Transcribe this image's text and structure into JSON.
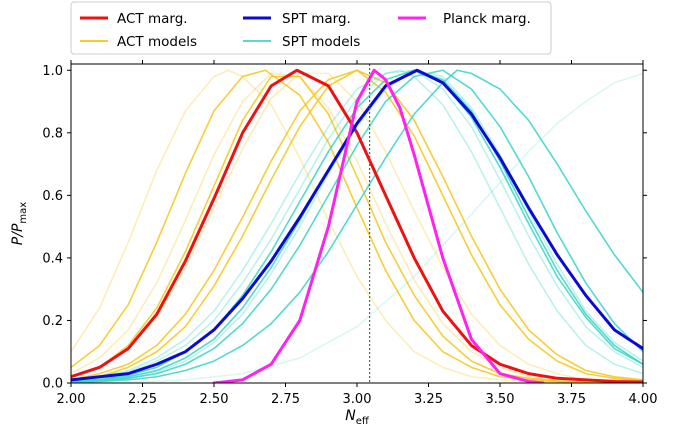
{
  "chart_data": {
    "type": "line",
    "xlabel_main": "N",
    "xlabel_sub": "eff",
    "ylabel_main": "P/P",
    "ylabel_sub": "max",
    "xlim": [
      2.0,
      4.0
    ],
    "ylim": [
      0.0,
      1.02
    ],
    "x_ticks": [
      2.0,
      2.25,
      2.5,
      2.75,
      3.0,
      3.25,
      3.5,
      3.75,
      4.0
    ],
    "x_tick_labels": [
      "2.00",
      "2.25",
      "2.50",
      "2.75",
      "3.00",
      "3.25",
      "3.50",
      "3.75",
      "4.00"
    ],
    "y_ticks": [
      0.0,
      0.2,
      0.4,
      0.6,
      0.8,
      1.0
    ],
    "y_tick_labels": [
      "0.0",
      "0.2",
      "0.4",
      "0.6",
      "0.8",
      "1.0"
    ],
    "grid": false,
    "legend_position": "top-center",
    "reference_line": {
      "x": 3.044,
      "color": "#2e7d32",
      "style": "dotted"
    },
    "colors": {
      "act": "#ee1111",
      "act_models": "#f5c518",
      "spt": "#0a0ad0",
      "spt_models": "#40d6c8",
      "planck": "#ff22ee"
    },
    "legend": [
      {
        "label": "ACT marg.",
        "color": "#ee1111",
        "weight": "bold"
      },
      {
        "label": "ACT models",
        "color": "#f5c518",
        "weight": "normal"
      },
      {
        "label": "SPT marg.",
        "color": "#0a0ad0",
        "weight": "bold"
      },
      {
        "label": "SPT models",
        "color": "#40d6c8",
        "weight": "normal"
      },
      {
        "label": "Planck marg.",
        "color": "#ff22ee",
        "weight": "bold"
      }
    ],
    "series": [
      {
        "name": "ACT marg.",
        "kind": "bold",
        "color": "#ee1111",
        "x": [
          2.0,
          2.1,
          2.2,
          2.3,
          2.4,
          2.5,
          2.6,
          2.7,
          2.79,
          2.9,
          3.0,
          3.1,
          3.2,
          3.3,
          3.4,
          3.5,
          3.6,
          3.7,
          3.8,
          3.9,
          4.0
        ],
        "y": [
          0.02,
          0.05,
          0.11,
          0.22,
          0.39,
          0.59,
          0.8,
          0.95,
          1.0,
          0.95,
          0.8,
          0.6,
          0.4,
          0.23,
          0.12,
          0.06,
          0.03,
          0.015,
          0.01,
          0.005,
          0.003
        ]
      },
      {
        "name": "SPT marg.",
        "kind": "bold",
        "color": "#0a0ad0",
        "x": [
          2.0,
          2.1,
          2.2,
          2.3,
          2.4,
          2.5,
          2.6,
          2.7,
          2.8,
          2.9,
          3.0,
          3.1,
          3.21,
          3.3,
          3.4,
          3.5,
          3.6,
          3.7,
          3.8,
          3.9,
          4.0
        ],
        "y": [
          0.01,
          0.02,
          0.03,
          0.06,
          0.1,
          0.17,
          0.27,
          0.39,
          0.53,
          0.68,
          0.83,
          0.95,
          1.0,
          0.96,
          0.86,
          0.72,
          0.56,
          0.41,
          0.28,
          0.17,
          0.11
        ]
      },
      {
        "name": "Planck marg.",
        "kind": "bold",
        "color": "#ff22ee",
        "x": [
          2.5,
          2.6,
          2.7,
          2.8,
          2.9,
          2.95,
          3.0,
          3.06,
          3.1,
          3.15,
          3.2,
          3.3,
          3.4,
          3.5,
          3.6,
          3.65
        ],
        "y": [
          0.0,
          0.01,
          0.06,
          0.2,
          0.5,
          0.7,
          0.9,
          1.0,
          0.97,
          0.88,
          0.73,
          0.4,
          0.14,
          0.03,
          0.005,
          0.0
        ]
      },
      {
        "name": "",
        "kind": "model",
        "color": "#f5c518",
        "opacity": 0.85,
        "x": [
          2.0,
          2.1,
          2.2,
          2.3,
          2.4,
          2.5,
          2.6,
          2.68,
          2.8,
          2.9,
          3.0,
          3.1,
          3.2,
          3.3,
          3.4,
          3.5,
          3.6,
          3.7,
          3.8,
          3.9,
          4.0
        ],
        "y": [
          0.05,
          0.12,
          0.25,
          0.45,
          0.67,
          0.87,
          0.98,
          1.0,
          0.92,
          0.77,
          0.56,
          0.36,
          0.2,
          0.1,
          0.05,
          0.02,
          0.01,
          0.005,
          0.002,
          0.001,
          0.0
        ]
      },
      {
        "name": "",
        "kind": "model",
        "color": "#f5c518",
        "opacity": 0.85,
        "x": [
          2.0,
          2.1,
          2.2,
          2.3,
          2.4,
          2.5,
          2.6,
          2.7,
          2.8,
          2.9,
          3.0,
          3.1,
          3.2,
          3.3,
          3.4,
          3.5,
          3.6,
          3.7,
          3.8,
          3.9,
          4.0
        ],
        "y": [
          0.02,
          0.05,
          0.12,
          0.24,
          0.42,
          0.63,
          0.84,
          0.98,
          0.98,
          0.86,
          0.66,
          0.45,
          0.28,
          0.15,
          0.07,
          0.03,
          0.015,
          0.006,
          0.002,
          0.001,
          0.0
        ]
      },
      {
        "name": "",
        "kind": "model",
        "color": "#f5c518",
        "opacity": 0.85,
        "x": [
          2.0,
          2.1,
          2.2,
          2.3,
          2.4,
          2.5,
          2.6,
          2.7,
          2.8,
          2.9,
          3.0,
          3.1,
          3.2,
          3.3,
          3.4,
          3.5,
          3.6,
          3.7,
          3.8,
          3.9,
          4.0
        ],
        "y": [
          0.01,
          0.03,
          0.06,
          0.12,
          0.22,
          0.36,
          0.53,
          0.71,
          0.87,
          0.97,
          1.0,
          0.93,
          0.79,
          0.6,
          0.41,
          0.25,
          0.14,
          0.07,
          0.03,
          0.015,
          0.007
        ]
      },
      {
        "name": "",
        "kind": "model",
        "color": "#f5c518",
        "opacity": 0.85,
        "x": [
          2.0,
          2.1,
          2.2,
          2.3,
          2.4,
          2.5,
          2.6,
          2.7,
          2.8,
          2.9,
          3.0,
          3.1,
          3.2,
          3.3,
          3.4,
          3.5,
          3.6,
          3.7,
          3.8,
          3.9,
          4.0
        ],
        "y": [
          0.01,
          0.02,
          0.05,
          0.1,
          0.18,
          0.31,
          0.47,
          0.65,
          0.82,
          0.95,
          1.0,
          0.96,
          0.84,
          0.66,
          0.47,
          0.3,
          0.17,
          0.09,
          0.04,
          0.02,
          0.01
        ]
      },
      {
        "name": "",
        "kind": "model",
        "color": "#f5c518",
        "opacity": 0.3,
        "x": [
          2.0,
          2.1,
          2.2,
          2.3,
          2.4,
          2.5,
          2.55,
          2.6,
          2.7,
          2.8,
          2.9,
          3.0,
          3.1,
          3.2,
          3.3,
          3.4,
          3.5,
          3.6,
          3.7,
          3.8,
          4.0
        ],
        "y": [
          0.1,
          0.24,
          0.45,
          0.68,
          0.87,
          0.98,
          1.0,
          0.98,
          0.89,
          0.72,
          0.52,
          0.34,
          0.2,
          0.1,
          0.05,
          0.02,
          0.01,
          0.004,
          0.002,
          0.001,
          0.0
        ]
      },
      {
        "name": "",
        "kind": "model",
        "color": "#f5c518",
        "opacity": 0.3,
        "x": [
          2.0,
          2.1,
          2.2,
          2.3,
          2.4,
          2.5,
          2.6,
          2.7,
          2.8,
          2.9,
          3.0,
          3.1,
          3.2,
          3.3,
          3.4,
          3.5,
          3.6,
          3.7,
          3.8,
          3.9,
          4.0
        ],
        "y": [
          0.03,
          0.08,
          0.17,
          0.32,
          0.52,
          0.73,
          0.9,
          0.99,
          0.98,
          0.88,
          0.71,
          0.51,
          0.33,
          0.19,
          0.1,
          0.05,
          0.02,
          0.01,
          0.004,
          0.002,
          0.001
        ]
      },
      {
        "name": "",
        "kind": "model",
        "color": "#f5c518",
        "opacity": 0.3,
        "x": [
          2.0,
          2.1,
          2.2,
          2.3,
          2.4,
          2.5,
          2.6,
          2.7,
          2.8,
          2.9,
          3.0,
          3.1,
          3.2,
          3.3,
          3.4,
          3.5,
          3.6,
          3.7,
          3.8,
          3.9,
          4.0
        ],
        "y": [
          0.02,
          0.05,
          0.11,
          0.21,
          0.37,
          0.56,
          0.75,
          0.91,
          0.99,
          0.99,
          0.9,
          0.74,
          0.55,
          0.37,
          0.22,
          0.12,
          0.06,
          0.03,
          0.01,
          0.005,
          0.002
        ]
      },
      {
        "name": "",
        "kind": "model",
        "color": "#40d6c8",
        "opacity": 0.9,
        "x": [
          2.0,
          2.1,
          2.2,
          2.3,
          2.4,
          2.5,
          2.6,
          2.7,
          2.8,
          2.9,
          3.0,
          3.1,
          3.2,
          3.3,
          3.4,
          3.5,
          3.6,
          3.7,
          3.8,
          3.9,
          4.0
        ],
        "y": [
          0.005,
          0.012,
          0.025,
          0.05,
          0.1,
          0.17,
          0.28,
          0.42,
          0.58,
          0.74,
          0.88,
          0.97,
          1.0,
          0.96,
          0.85,
          0.69,
          0.51,
          0.34,
          0.21,
          0.11,
          0.06
        ]
      },
      {
        "name": "",
        "kind": "model",
        "color": "#40d6c8",
        "opacity": 0.9,
        "x": [
          2.0,
          2.1,
          2.2,
          2.3,
          2.4,
          2.5,
          2.6,
          2.7,
          2.8,
          2.9,
          3.0,
          3.1,
          3.2,
          3.3,
          3.4,
          3.5,
          3.6,
          3.7,
          3.8,
          3.9,
          4.0
        ],
        "y": [
          0.003,
          0.007,
          0.015,
          0.03,
          0.06,
          0.11,
          0.19,
          0.3,
          0.44,
          0.6,
          0.76,
          0.9,
          0.98,
          1.0,
          0.94,
          0.82,
          0.66,
          0.48,
          0.32,
          0.19,
          0.1
        ]
      },
      {
        "name": "",
        "kind": "model",
        "color": "#40d6c8",
        "opacity": 0.9,
        "x": [
          2.0,
          2.1,
          2.2,
          2.3,
          2.4,
          2.5,
          2.6,
          2.7,
          2.8,
          2.9,
          3.0,
          3.1,
          3.2,
          3.3,
          3.35,
          3.4,
          3.5,
          3.6,
          3.7,
          3.8,
          3.9,
          4.0
        ],
        "y": [
          0.002,
          0.005,
          0.01,
          0.02,
          0.04,
          0.07,
          0.12,
          0.19,
          0.29,
          0.42,
          0.57,
          0.72,
          0.86,
          0.96,
          1.0,
          0.99,
          0.94,
          0.84,
          0.7,
          0.55,
          0.41,
          0.29
        ]
      },
      {
        "name": "",
        "kind": "model",
        "color": "#40d6c8",
        "opacity": 0.9,
        "x": [
          2.0,
          2.1,
          2.2,
          2.3,
          2.4,
          2.5,
          2.6,
          2.7,
          2.8,
          2.9,
          3.0,
          3.1,
          3.2,
          3.3,
          3.4,
          3.5,
          3.6,
          3.7,
          3.8,
          3.9,
          4.0
        ],
        "y": [
          0.004,
          0.01,
          0.02,
          0.04,
          0.08,
          0.14,
          0.24,
          0.37,
          0.52,
          0.68,
          0.83,
          0.95,
          1.0,
          0.97,
          0.87,
          0.71,
          0.53,
          0.36,
          0.22,
          0.12,
          0.06
        ]
      },
      {
        "name": "",
        "kind": "model",
        "color": "#40d6c8",
        "opacity": 0.35,
        "x": [
          2.0,
          2.1,
          2.2,
          2.3,
          2.4,
          2.5,
          2.6,
          2.7,
          2.8,
          2.9,
          3.0,
          3.1,
          3.15,
          3.2,
          3.3,
          3.4,
          3.5,
          3.6,
          3.7,
          3.8,
          3.9,
          4.0
        ],
        "y": [
          0.01,
          0.02,
          0.04,
          0.08,
          0.14,
          0.23,
          0.36,
          0.51,
          0.67,
          0.82,
          0.94,
          0.99,
          1.0,
          0.98,
          0.89,
          0.74,
          0.56,
          0.38,
          0.23,
          0.12,
          0.06,
          0.03
        ]
      },
      {
        "name": "",
        "kind": "model",
        "color": "#40d6c8",
        "opacity": 0.35,
        "x": [
          2.0,
          2.1,
          2.2,
          2.3,
          2.4,
          2.5,
          2.6,
          2.7,
          2.8,
          2.9,
          3.0,
          3.1,
          3.2,
          3.3,
          3.4,
          3.5,
          3.6,
          3.7,
          3.8,
          3.9,
          4.0
        ],
        "y": [
          0.003,
          0.008,
          0.017,
          0.035,
          0.07,
          0.13,
          0.22,
          0.35,
          0.5,
          0.67,
          0.82,
          0.94,
          1.0,
          0.98,
          0.88,
          0.73,
          0.55,
          0.38,
          0.23,
          0.13,
          0.07
        ]
      },
      {
        "name": "",
        "kind": "model",
        "color": "#40d6c8",
        "opacity": 0.35,
        "x": [
          2.0,
          2.1,
          2.2,
          2.3,
          2.4,
          2.5,
          2.6,
          2.7,
          2.8,
          2.9,
          3.0,
          3.1,
          3.2,
          3.3,
          3.4,
          3.5,
          3.6,
          3.7,
          3.8,
          3.9,
          4.0
        ],
        "y": [
          0.008,
          0.018,
          0.035,
          0.07,
          0.12,
          0.2,
          0.32,
          0.46,
          0.62,
          0.78,
          0.91,
          0.99,
          1.0,
          0.94,
          0.82,
          0.65,
          0.47,
          0.31,
          0.18,
          0.1,
          0.05
        ]
      },
      {
        "name": "",
        "kind": "model",
        "color": "#40d6c8",
        "opacity": 0.2,
        "x": [
          2.0,
          2.2,
          2.4,
          2.6,
          2.8,
          3.0,
          3.2,
          3.4,
          3.5,
          3.6,
          3.7,
          3.8,
          3.9,
          4.0
        ],
        "y": [
          0.0,
          0.002,
          0.01,
          0.03,
          0.08,
          0.18,
          0.34,
          0.54,
          0.64,
          0.74,
          0.83,
          0.9,
          0.96,
          0.99
        ]
      }
    ]
  }
}
